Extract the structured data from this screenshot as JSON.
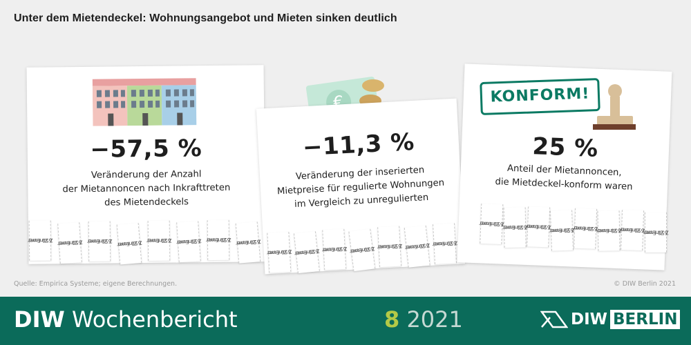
{
  "title": "Unter dem Mietendeckel: Wohnungsangebot und Mieten sinken deutlich",
  "cards": [
    {
      "value": "−57,5 %",
      "lines": [
        "Veränderung der Anzahl",
        "der Mietannoncen nach Inkrafttreten",
        "des Mietendeckels"
      ]
    },
    {
      "value": "−11,3 %",
      "lines": [
        "Veränderung der inserierten",
        "Mietpreise für regulierte Wohnungen",
        "im Vergleich zu unregulierten"
      ]
    },
    {
      "value": "25 %",
      "lines": [
        "Anteil der Mietannoncen,",
        "die Mietdeckel-konform waren"
      ]
    }
  ],
  "tab": {
    "line1": "2 Zimmer",
    "line2": "650 Euro"
  },
  "stamp": "KONFORM!",
  "source": "Quelle: Empirica Systeme; eigene Berechnungen.",
  "copyright": "© DIW Berlin 2021",
  "footer": {
    "brand_bold": "DIW",
    "brand_rest": " Wochenbericht",
    "issue_number": "8",
    "issue_year": " 2021",
    "logo_left": "DIW",
    "logo_right": "BERLIN"
  },
  "colors": {
    "footer": "#0b6b5a",
    "accent": "#b3c947",
    "stamp": "#0b7a63"
  }
}
